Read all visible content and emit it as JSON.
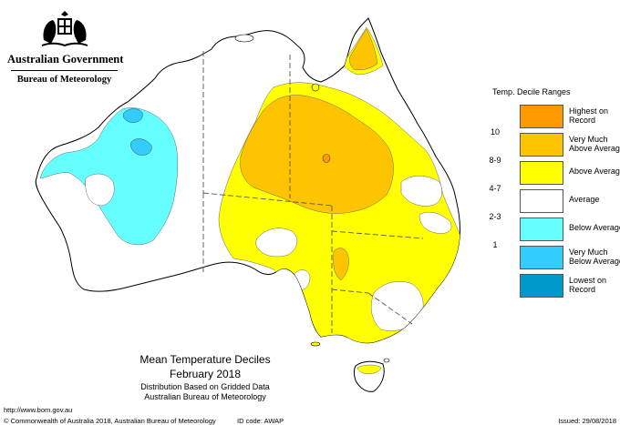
{
  "header": {
    "government": "Australian Government",
    "bureau": "Bureau of Meteorology"
  },
  "map_titles": {
    "line1": "Mean Temperature Deciles",
    "line2": "February 2018",
    "line3": "Distribution Based on Gridded Data",
    "line4": "Australian Bureau of Meteorology"
  },
  "legend": {
    "title": "Temp. Decile Ranges",
    "items": [
      {
        "range": "",
        "label": "Highest on Record",
        "color": "#ff9900"
      },
      {
        "range": "10",
        "label": "Very Much Above Average",
        "color": "#ffc400"
      },
      {
        "range": "8-9",
        "label": "Above Average",
        "color": "#ffff00"
      },
      {
        "range": "4-7",
        "label": "Average",
        "color": "#ffffff"
      },
      {
        "range": "2-3",
        "label": "Below Average",
        "color": "#66ffff"
      },
      {
        "range": "1",
        "label": "Very Much Below Average",
        "color": "#33ccff"
      },
      {
        "range": "",
        "label": "Lowest on Record",
        "color": "#0099cc"
      }
    ]
  },
  "footer": {
    "url": "http://www.bom.gov.au",
    "copyright": "© Commonwealth of Australia 2018, Australian Bureau of Meteorology",
    "id_code": "ID code: AWAP",
    "issued": "Issued: 29/08/2018"
  }
}
